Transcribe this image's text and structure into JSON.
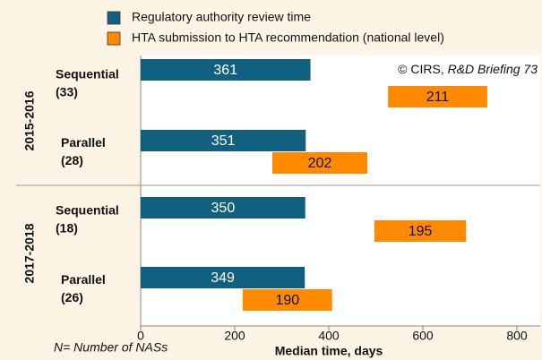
{
  "chart_data": {
    "type": "floating_bar",
    "series": [
      {
        "name": "Regulatory authority review time",
        "color": "#11607f",
        "label_color": "#ffffff",
        "values": [
          361,
          351,
          350,
          349
        ]
      },
      {
        "name": "HTA submission to HTA recommendation (national level)",
        "color": "#ff8a00",
        "label_color": "#111111",
        "starts": [
          526,
          280,
          497,
          217
        ],
        "values": [
          211,
          202,
          195,
          190
        ]
      }
    ],
    "categories": [
      "Sequential",
      "Parallel",
      "Sequential",
      "Parallel"
    ],
    "category_counts": [
      "(33)",
      "(28)",
      "(18)",
      "(26)"
    ],
    "groups": [
      "2015-2016",
      "2017-2018"
    ],
    "annotation": "© CIRS,",
    "annotation_source": "R&D Briefing 73",
    "note": "N= Number of NASs",
    "xlabel": "Median time, days",
    "xlim": [
      0,
      844
    ],
    "xticks": [
      0,
      200,
      400,
      600,
      800
    ]
  }
}
